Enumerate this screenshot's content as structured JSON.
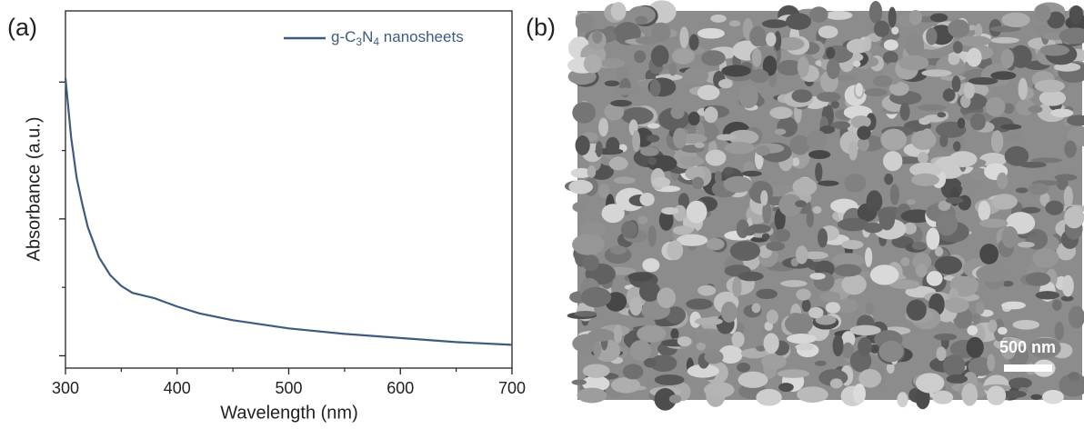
{
  "chart_data": {
    "type": "line",
    "panel_label": "(a)",
    "x_label": "Wavelength (nm)",
    "y_label": "Absorbance (a.u.)",
    "x": [
      300,
      305,
      310,
      315,
      320,
      330,
      340,
      350,
      360,
      370,
      380,
      390,
      400,
      420,
      450,
      500,
      550,
      600,
      650,
      700
    ],
    "series": [
      {
        "name": "g-C3N4 nanosheets",
        "color": "#3f5a7f",
        "values": [
          2.03,
          1.6,
          1.3,
          1.11,
          0.94,
          0.72,
          0.59,
          0.51,
          0.46,
          0.44,
          0.42,
          0.39,
          0.36,
          0.31,
          0.26,
          0.2,
          0.16,
          0.13,
          0.1,
          0.08
        ]
      }
    ],
    "xlim": [
      300,
      700
    ],
    "xticks": [
      300,
      400,
      500,
      600,
      700
    ],
    "ylim": [
      -0.09,
      2.52
    ],
    "yticks": [
      0,
      1,
      2
    ],
    "ytick_labels": false,
    "legend": "upper right"
  },
  "image_panel": {
    "label": "(b)",
    "scale_bar": "500 nm"
  }
}
